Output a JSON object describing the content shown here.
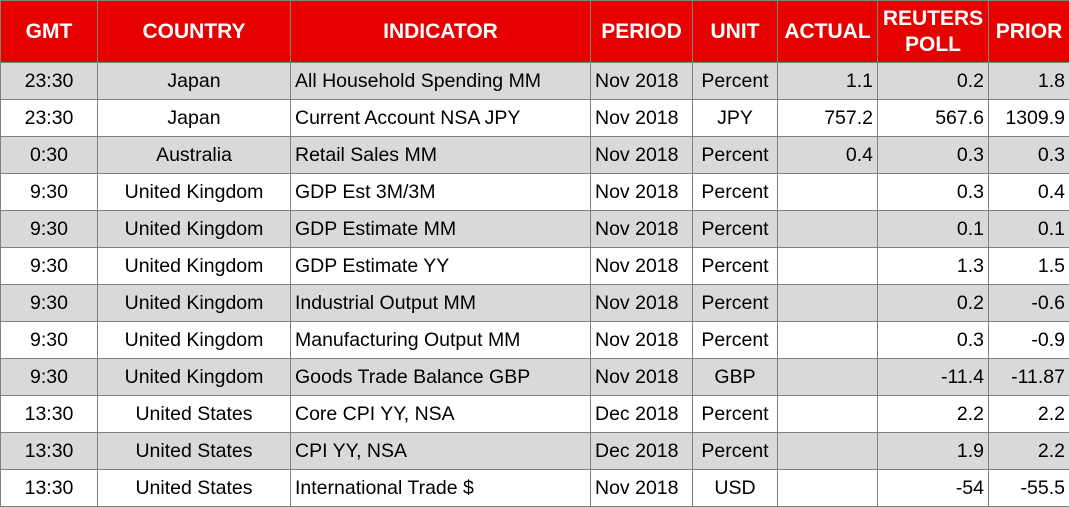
{
  "table": {
    "header": [
      "GMT",
      "COUNTRY",
      "INDICATOR",
      "PERIOD",
      "UNIT",
      "ACTUAL",
      "REUTERS POLL",
      "PRIOR"
    ],
    "rows": [
      [
        "23:30",
        "Japan",
        "All Household Spending MM",
        "Nov 2018",
        "Percent",
        "1.1",
        "0.2",
        "1.8"
      ],
      [
        "23:30",
        "Japan",
        "Current Account NSA JPY",
        "Nov 2018",
        "JPY",
        "757.2",
        "567.6",
        "1309.9"
      ],
      [
        "0:30",
        "Australia",
        "Retail Sales MM",
        "Nov 2018",
        "Percent",
        "0.4",
        "0.3",
        "0.3"
      ],
      [
        "9:30",
        "United Kingdom",
        "GDP Est 3M/3M",
        "Nov 2018",
        "Percent",
        null,
        "0.3",
        "0.4"
      ],
      [
        "9:30",
        "United Kingdom",
        "GDP Estimate MM",
        "Nov 2018",
        "Percent",
        null,
        "0.1",
        "0.1"
      ],
      [
        "9:30",
        "United Kingdom",
        "GDP Estimate YY",
        "Nov 2018",
        "Percent",
        null,
        "1.3",
        "1.5"
      ],
      [
        "9:30",
        "United Kingdom",
        "Industrial Output MM",
        "Nov 2018",
        "Percent",
        null,
        "0.2",
        "-0.6"
      ],
      [
        "9:30",
        "United Kingdom",
        "Manufacturing Output MM",
        "Nov 2018",
        "Percent",
        null,
        "0.3",
        "-0.9"
      ],
      [
        "9:30",
        "United Kingdom",
        "Goods Trade Balance GBP",
        "Nov 2018",
        "GBP",
        null,
        "-11.4",
        "-11.87"
      ],
      [
        "13:30",
        "United States",
        "Core CPI YY, NSA",
        "Dec 2018",
        "Percent",
        null,
        "2.2",
        "2.2"
      ],
      [
        "13:30",
        "United States",
        "CPI YY, NSA",
        "Dec 2018",
        "Percent",
        null,
        "1.9",
        "2.2"
      ],
      [
        "13:30",
        "United States",
        "International Trade $",
        "Nov 2018",
        "USD",
        null,
        "-54",
        "-55.5"
      ]
    ]
  }
}
